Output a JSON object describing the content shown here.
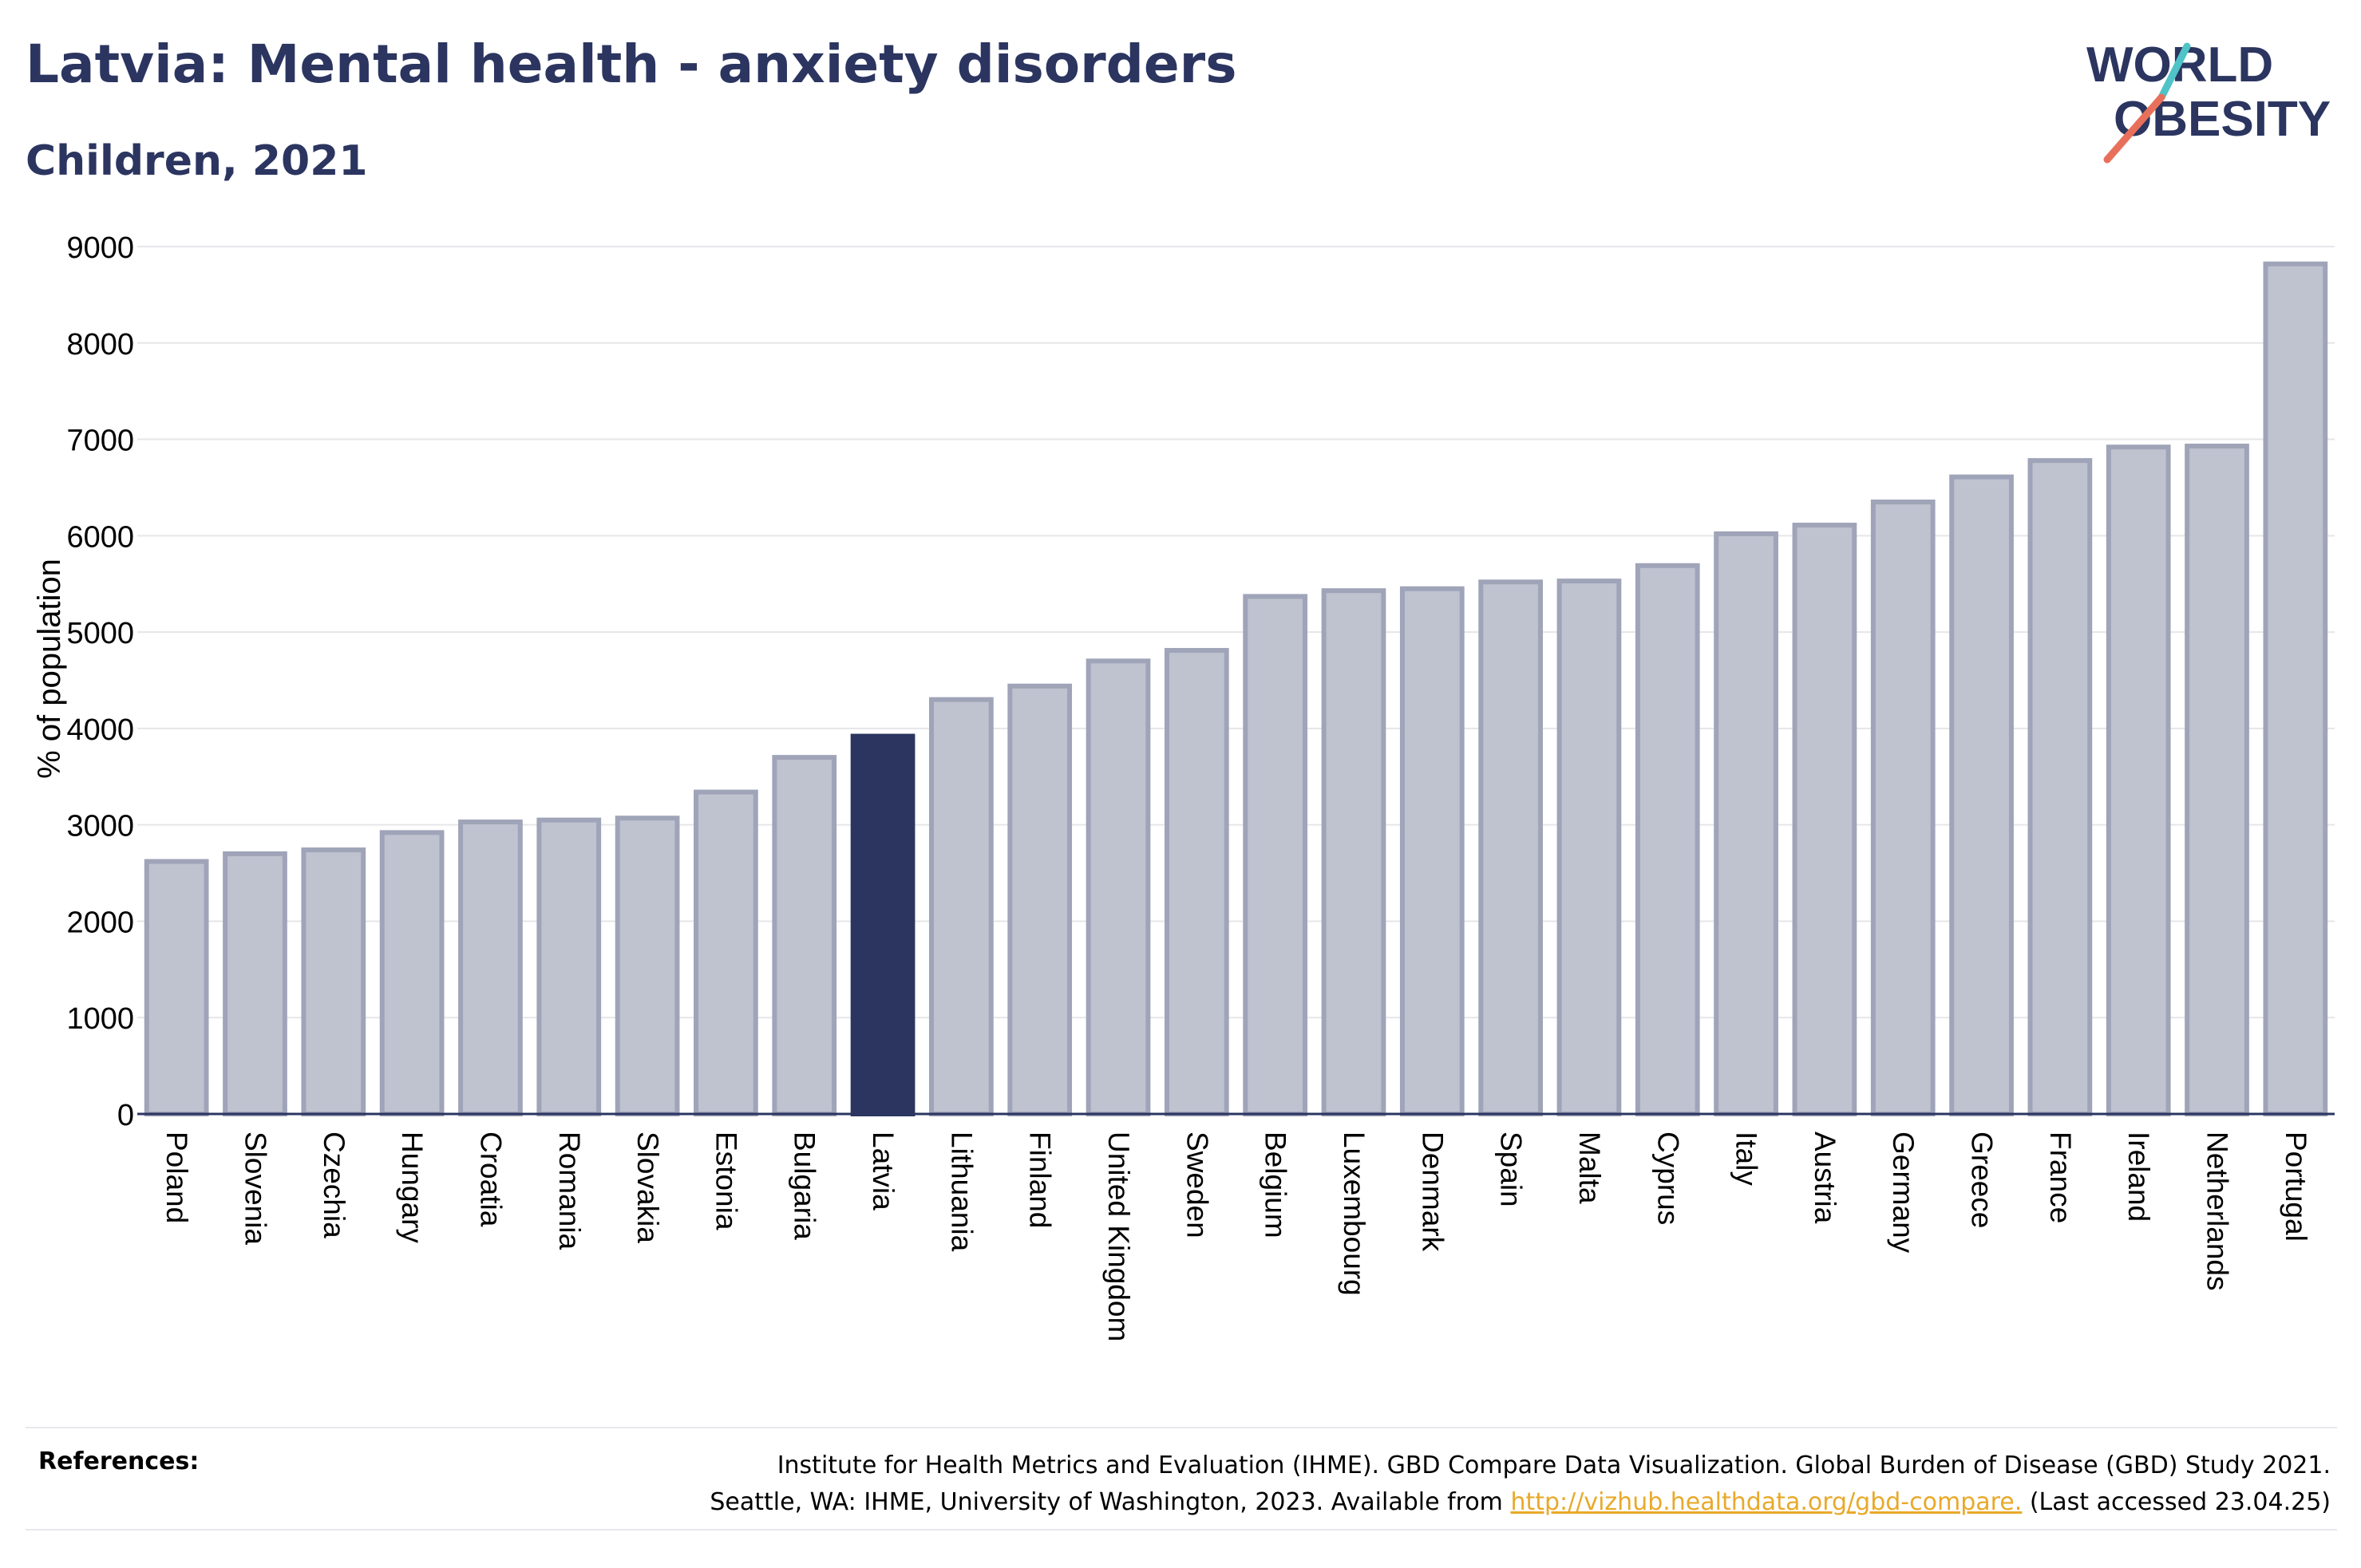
{
  "header": {
    "title": "Latvia: Mental health - anxiety disorders",
    "subtitle": "Children, 2021"
  },
  "logo": {
    "line1": "WORLD",
    "line2": "OBESITY",
    "accent_colors": [
      "#4fc3c7",
      "#e8705a"
    ]
  },
  "references": {
    "label": "References:",
    "line1": "Institute for Health Metrics and Evaluation (IHME). GBD Compare Data Visualization. Global Burden of Disease (GBD) Study 2021.",
    "line2_prefix": "Seattle, WA: IHME, University of Washington, 2023. Available from ",
    "link_text": "http://vizhub.healthdata.org/gbd-compare.",
    "line2_suffix": " (Last accessed 23.04.25)"
  },
  "colors": {
    "highlight": "#2b3560",
    "bar_fill": "#bfc2cf",
    "bar_stroke": "#9fa4b8",
    "grid": "#e6e6ea",
    "axis": "#2b3560"
  },
  "chart_data": {
    "type": "bar",
    "title": "Latvia: Mental health - anxiety disorders",
    "subtitle": "Children, 2021",
    "xlabel": "",
    "ylabel": "% of population",
    "ylim": [
      0,
      9000
    ],
    "yticks": [
      0,
      1000,
      2000,
      3000,
      4000,
      5000,
      6000,
      7000,
      8000,
      9000
    ],
    "grid": true,
    "highlight": "Latvia",
    "categories": [
      "Poland",
      "Slovenia",
      "Czechia",
      "Hungary",
      "Croatia",
      "Romania",
      "Slovakia",
      "Estonia",
      "Bulgaria",
      "Latvia",
      "Lithuania",
      "Finland",
      "United Kingdom",
      "Sweden",
      "Belgium",
      "Luxembourg",
      "Denmark",
      "Spain",
      "Malta",
      "Cyprus",
      "Italy",
      "Austria",
      "Germany",
      "Greece",
      "France",
      "Ireland",
      "Netherlands",
      "Portugal"
    ],
    "values": [
      2620,
      2700,
      2740,
      2920,
      3030,
      3050,
      3070,
      3340,
      3700,
      3920,
      4300,
      4440,
      4700,
      4810,
      5370,
      5430,
      5450,
      5520,
      5530,
      5690,
      6020,
      6110,
      6350,
      6610,
      6780,
      6920,
      6930,
      8820
    ]
  }
}
